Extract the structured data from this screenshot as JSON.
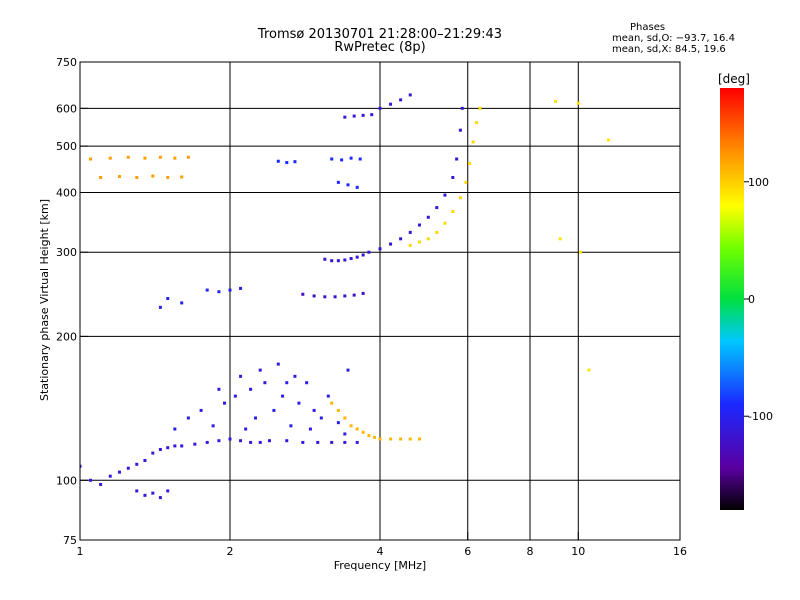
{
  "chart_data": {
    "type": "scatter",
    "title": "Tromsø 20130701 21:28:00–21:29:43",
    "subtitle": "RwPretec (8p)",
    "xlabel": "Frequency [MHz]",
    "ylabel": "Stationary phase Virtual Height [km]",
    "x_scale": "log",
    "y_scale": "log",
    "xlim": [
      1,
      16
    ],
    "ylim": [
      75,
      750
    ],
    "x_ticks": [
      1,
      2,
      4,
      6,
      8,
      10,
      16
    ],
    "y_ticks": [
      75,
      100,
      200,
      300,
      400,
      500,
      600,
      750
    ],
    "grid": true,
    "color_scale": {
      "label": "[deg]",
      "range": [
        -180,
        180
      ],
      "ticks": [
        100,
        0,
        -100
      ]
    },
    "legend": {
      "heading": "Phases",
      "line_o": "mean, sd,O: −93.7, 16.4",
      "line_x": "mean, sd,X:  84.5, 19.6"
    },
    "series": [
      {
        "points": [
          [
            1.0,
            107
          ],
          [
            1.05,
            100
          ],
          [
            1.1,
            98
          ],
          [
            1.15,
            102
          ],
          [
            1.2,
            104
          ],
          [
            1.25,
            106
          ],
          [
            1.3,
            108
          ],
          [
            1.35,
            110
          ],
          [
            1.4,
            114
          ],
          [
            1.45,
            116
          ],
          [
            1.5,
            117
          ],
          [
            1.55,
            118
          ],
          [
            1.6,
            118
          ],
          [
            1.7,
            119
          ],
          [
            1.8,
            120
          ],
          [
            1.9,
            121
          ],
          [
            2.0,
            122
          ],
          [
            2.1,
            121
          ],
          [
            2.2,
            120
          ],
          [
            2.3,
            120
          ],
          [
            2.4,
            121
          ],
          [
            2.6,
            121
          ],
          [
            2.8,
            120
          ],
          [
            3.0,
            120
          ],
          [
            3.2,
            120
          ],
          [
            3.4,
            120
          ],
          [
            3.6,
            120
          ]
        ],
        "phase": -110
      },
      {
        "points": [
          [
            1.55,
            128
          ],
          [
            1.65,
            135
          ],
          [
            1.75,
            140
          ],
          [
            1.85,
            130
          ],
          [
            1.95,
            145
          ],
          [
            2.05,
            150
          ],
          [
            2.15,
            128
          ],
          [
            2.25,
            135
          ],
          [
            2.35,
            160
          ],
          [
            2.45,
            140
          ],
          [
            2.55,
            150
          ],
          [
            2.65,
            130
          ],
          [
            2.75,
            145
          ],
          [
            2.85,
            160
          ],
          [
            2.95,
            140
          ],
          [
            3.05,
            135
          ],
          [
            3.15,
            150
          ],
          [
            3.3,
            132
          ],
          [
            3.45,
            170
          ],
          [
            2.1,
            165
          ],
          [
            2.3,
            170
          ],
          [
            2.5,
            175
          ],
          [
            2.7,
            165
          ],
          [
            1.9,
            155
          ],
          [
            2.2,
            155
          ],
          [
            2.6,
            160
          ],
          [
            2.9,
            128
          ],
          [
            3.4,
            125
          ]
        ],
        "phase": -105
      },
      {
        "points": [
          [
            3.2,
            145
          ],
          [
            3.3,
            140
          ],
          [
            3.4,
            135
          ],
          [
            3.5,
            130
          ],
          [
            3.6,
            128
          ],
          [
            3.7,
            126
          ],
          [
            3.8,
            124
          ],
          [
            3.9,
            123
          ],
          [
            4.0,
            122
          ],
          [
            4.2,
            122
          ],
          [
            4.4,
            122
          ],
          [
            4.6,
            122
          ],
          [
            4.8,
            122
          ]
        ],
        "phase": 110
      },
      {
        "points": [
          [
            3.1,
            290
          ],
          [
            3.2,
            288
          ],
          [
            3.3,
            288
          ],
          [
            3.4,
            289
          ],
          [
            3.5,
            291
          ],
          [
            3.6,
            293
          ],
          [
            3.7,
            296
          ],
          [
            3.8,
            300
          ],
          [
            4.0,
            305
          ],
          [
            4.2,
            312
          ],
          [
            4.4,
            320
          ],
          [
            4.6,
            330
          ],
          [
            4.8,
            342
          ],
          [
            5.0,
            355
          ],
          [
            5.2,
            372
          ],
          [
            5.4,
            395
          ],
          [
            5.6,
            430
          ],
          [
            5.7,
            470
          ],
          [
            5.8,
            540
          ],
          [
            5.85,
            600
          ]
        ],
        "phase": -115
      },
      {
        "points": [
          [
            4.6,
            310
          ],
          [
            4.8,
            315
          ],
          [
            5.0,
            320
          ],
          [
            5.2,
            330
          ],
          [
            5.4,
            345
          ],
          [
            5.6,
            365
          ],
          [
            5.8,
            390
          ],
          [
            5.95,
            420
          ],
          [
            6.05,
            460
          ],
          [
            6.15,
            510
          ],
          [
            6.25,
            560
          ],
          [
            6.35,
            600
          ]
        ],
        "phase": 95
      },
      {
        "points": [
          [
            2.8,
            245
          ],
          [
            2.95,
            243
          ],
          [
            3.1,
            242
          ],
          [
            3.25,
            242
          ],
          [
            3.4,
            243
          ],
          [
            3.55,
            244
          ],
          [
            3.7,
            246
          ]
        ],
        "phase": -120
      },
      {
        "points": [
          [
            1.8,
            250
          ],
          [
            1.9,
            248
          ],
          [
            2.0,
            250
          ],
          [
            2.1,
            252
          ],
          [
            1.6,
            235
          ],
          [
            1.5,
            240
          ],
          [
            1.45,
            230
          ]
        ],
        "phase": -100
      },
      {
        "points": [
          [
            3.4,
            575
          ],
          [
            3.55,
            578
          ],
          [
            3.7,
            580
          ],
          [
            3.85,
            582
          ],
          [
            4.0,
            600
          ],
          [
            4.2,
            612
          ],
          [
            4.4,
            625
          ],
          [
            4.6,
            640
          ]
        ],
        "phase": -110
      },
      {
        "points": [
          [
            1.05,
            470
          ],
          [
            1.15,
            472
          ],
          [
            1.25,
            474
          ],
          [
            1.35,
            472
          ],
          [
            1.45,
            474
          ],
          [
            1.55,
            472
          ],
          [
            1.65,
            474
          ],
          [
            1.1,
            430
          ],
          [
            1.2,
            432
          ],
          [
            1.3,
            430
          ],
          [
            1.4,
            433
          ],
          [
            1.5,
            430
          ],
          [
            1.6,
            431
          ]
        ],
        "phase": 120
      },
      {
        "points": [
          [
            1.3,
            95
          ],
          [
            1.35,
            93
          ],
          [
            1.4,
            94
          ],
          [
            1.45,
            92
          ],
          [
            1.5,
            95
          ]
        ],
        "phase": -110
      },
      {
        "points": [
          [
            3.2,
            470
          ],
          [
            3.35,
            468
          ],
          [
            3.5,
            472
          ],
          [
            3.65,
            470
          ],
          [
            2.5,
            465
          ],
          [
            2.6,
            462
          ],
          [
            2.7,
            464
          ],
          [
            3.3,
            420
          ],
          [
            3.45,
            415
          ],
          [
            3.6,
            410
          ]
        ],
        "phase": -90
      },
      {
        "points": [
          [
            9.0,
            620
          ],
          [
            10.0,
            615
          ],
          [
            11.5,
            515
          ],
          [
            10.5,
            170
          ],
          [
            9.2,
            320
          ],
          [
            10.1,
            300
          ]
        ],
        "phase": 90
      }
    ]
  }
}
